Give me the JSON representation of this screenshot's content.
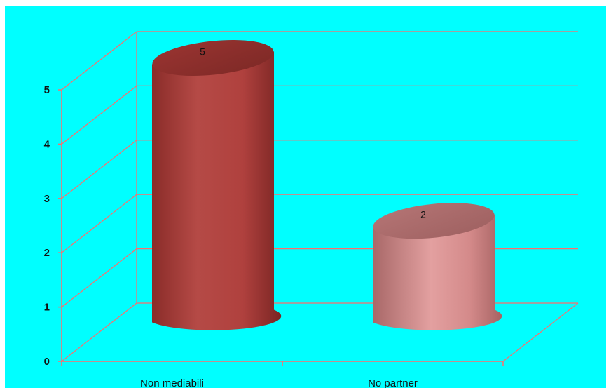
{
  "chart_data": {
    "type": "bar",
    "categories": [
      "Non mediabili",
      "No partner"
    ],
    "values": [
      5,
      2
    ],
    "ylim": [
      0,
      5
    ],
    "yticks": [
      "0",
      "1",
      "2",
      "3",
      "4",
      "5"
    ],
    "data_labels": [
      "5",
      "2"
    ],
    "grid": true,
    "legend": "none",
    "style": "3d-cylinder"
  },
  "colors": {
    "background": "#00ffff",
    "gridline": "#ff6b6b",
    "bar1": "#b0413e",
    "bar2": "#d48a8a"
  }
}
